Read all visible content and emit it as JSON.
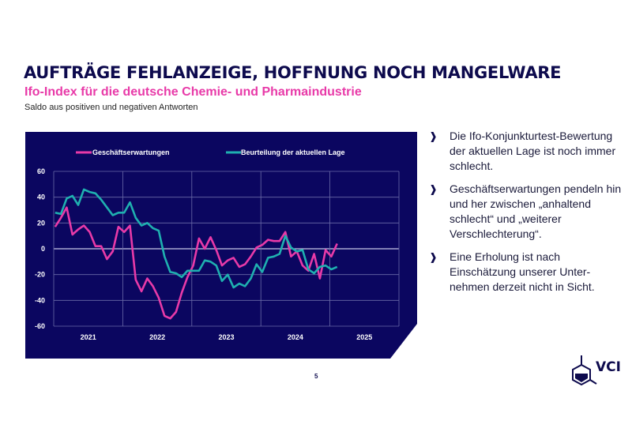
{
  "header": {
    "title": "AUFTRÄGE FEHLANZEIGE, HOFFNUNG NOCH MANGELWARE",
    "subtitle": "Ifo-Index für die deutsche Chemie- und Pharmaindustrie",
    "note": "Saldo aus positiven und negativen Antworten"
  },
  "colors": {
    "panel": "#0b0660",
    "expectations": "#e83aa8",
    "situation": "#1fb0b0",
    "title": "#0d0a4d"
  },
  "chart_data": {
    "type": "line",
    "title": "",
    "xlabel": "",
    "ylabel": "",
    "ylim": [
      -60,
      60
    ],
    "yticks": [
      60,
      40,
      20,
      0,
      -20,
      -40,
      -60
    ],
    "xticks": [
      "2021",
      "2022",
      "2023",
      "2024",
      "2025"
    ],
    "grid": true,
    "legend": "top",
    "x_start": "2021-01",
    "x_frequency": "monthly",
    "series": [
      {
        "name": "Geschäftserwartungen",
        "color": "#e83aa8",
        "values": [
          17,
          24,
          32,
          11,
          15,
          18,
          13,
          2,
          2,
          -8,
          -2,
          17,
          13,
          18,
          -24,
          -33,
          -23,
          -29,
          -38,
          -52,
          -54,
          -49,
          -34,
          -22,
          -13,
          8,
          0,
          9,
          -1,
          -13,
          -9,
          -7,
          -14,
          -12,
          -6,
          1,
          3,
          7,
          6,
          6,
          13,
          -6,
          -2,
          -13,
          -17,
          -4,
          -23,
          -1,
          -6,
          4
        ]
      },
      {
        "name": "Beurteilung der aktuellen Lage",
        "color": "#1fb0b0",
        "values": [
          28,
          27,
          39,
          41,
          34,
          46,
          44,
          43,
          38,
          32,
          26,
          28,
          28,
          36,
          24,
          18,
          20,
          16,
          14,
          -6,
          -18,
          -19,
          -22,
          -17,
          -17,
          -17,
          -9,
          -10,
          -13,
          -25,
          -20,
          -30,
          -27,
          -29,
          -23,
          -12,
          -18,
          -7,
          -6,
          -4,
          10,
          1,
          -2,
          -1,
          -16,
          -19,
          -14,
          -13,
          -16,
          -14
        ]
      }
    ]
  },
  "bullets": [
    {
      "icon": "chevron-right-icon",
      "text": "Die Ifo-Konjunkturtest-Bewertung der aktuellen Lage ist noch immer schlecht."
    },
    {
      "icon": "chevron-right-icon",
      "text": "Geschäftserwartungen pendeln hin und her zwischen „anhaltend schlecht“ und „weiterer Verschlechterung“."
    },
    {
      "icon": "chevron-right-icon",
      "text": "Eine Erholung ist nach Einschätzung unserer Unter-nehmen derzeit nicht in Sicht."
    }
  ],
  "footer": {
    "page_number": "5",
    "logo_text": "VCI"
  }
}
